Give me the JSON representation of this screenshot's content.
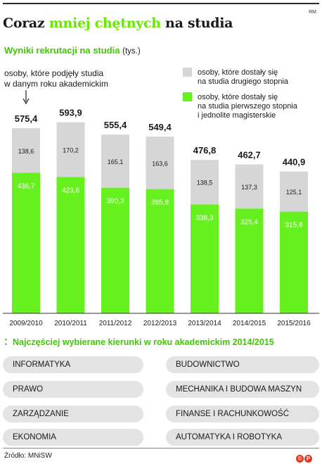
{
  "header": {
    "source_tag": "RM",
    "title_part1": "Coraz ",
    "title_highlight": "mniej chętnych",
    "title_part2": " na studia",
    "subtitle": "Wyniki rekrutacji na studia",
    "subtitle_unit": "(tys.)"
  },
  "chart_data": {
    "type": "bar",
    "stacked": true,
    "title": "Wyniki rekrutacji na studia",
    "unit": "(tys.)",
    "annotation": "osoby, które podjęły studia w danym roku akademickim",
    "categories": [
      "2009/2010",
      "2010/2011",
      "2011/2012",
      "2012/2013",
      "2013/2014",
      "2014/2015",
      "2015/2016"
    ],
    "totals": [
      "575,4",
      "593,9",
      "555,4",
      "549,4",
      "476,8",
      "462,7",
      "440,9"
    ],
    "series": [
      {
        "name": "osoby, które dostały się na studia pierwszego stopnia i jednolite magisterskie",
        "color": "#66f01e",
        "values": [
          436.7,
          423.6,
          390.3,
          385.8,
          338.3,
          325.4,
          315.8
        ],
        "labels": [
          "436,7",
          "423,6",
          "390,3",
          "385,8",
          "338,3",
          "325,4",
          "315,8"
        ]
      },
      {
        "name": "osoby, które dostały się na studia drugiego stopnia",
        "color": "#d6d6d6",
        "values": [
          138.6,
          170.2,
          165.1,
          163.6,
          138.5,
          137.3,
          125.1
        ],
        "labels": [
          "138,6",
          "170,2",
          "165,1",
          "163,6",
          "138,5",
          "137,3",
          "125,1"
        ]
      }
    ],
    "legend": [
      {
        "lines": [
          "osoby, które dostały się",
          "na studia drugiego stopnia"
        ],
        "color": "#d6d6d6"
      },
      {
        "lines": [
          "osoby, które dostały się",
          "na studia pierwszego stopnia",
          "i jednolite magisterskie"
        ],
        "color": "#66f01e"
      }
    ],
    "annotation_lines": [
      "osoby, które podjęły studia",
      "w danym roku akademickim"
    ],
    "ylim": [
      0,
      600
    ],
    "grid": false,
    "legend_position": "top-right"
  },
  "majors": {
    "heading": "Najczęściej wybierane kierunki w roku akademickim 2014/2015",
    "left": [
      "INFORMATYKA",
      "PRAWO",
      "ZARZĄDZANIE",
      "EKONOMIA"
    ],
    "right": [
      "BUDOWNICTWO",
      "MECHANIKA I BUDOWA MASZYN",
      "FINANSE I RACHUNKOWOŚĆ",
      "AUTOMATYKA I ROBOTYKA"
    ]
  },
  "footer": {
    "source": "Źródło: MNiSW",
    "logo": "©P"
  }
}
